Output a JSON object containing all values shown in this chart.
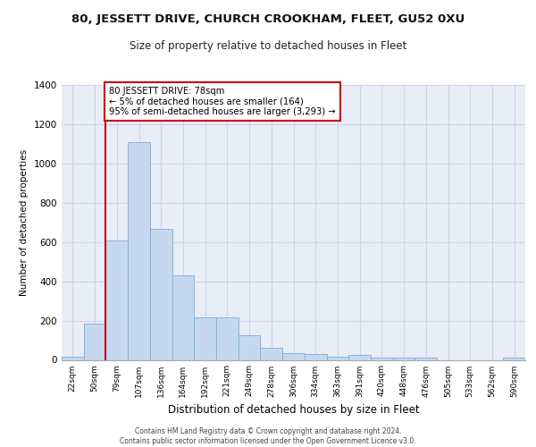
{
  "title": "80, JESSETT DRIVE, CHURCH CROOKHAM, FLEET, GU52 0XU",
  "subtitle": "Size of property relative to detached houses in Fleet",
  "xlabel": "Distribution of detached houses by size in Fleet",
  "ylabel": "Number of detached properties",
  "bin_labels": [
    "22sqm",
    "50sqm",
    "79sqm",
    "107sqm",
    "136sqm",
    "164sqm",
    "192sqm",
    "221sqm",
    "249sqm",
    "278sqm",
    "306sqm",
    "334sqm",
    "363sqm",
    "391sqm",
    "420sqm",
    "448sqm",
    "476sqm",
    "505sqm",
    "533sqm",
    "562sqm",
    "590sqm"
  ],
  "bar_values": [
    15,
    185,
    610,
    1110,
    665,
    430,
    215,
    215,
    125,
    60,
    35,
    30,
    15,
    25,
    10,
    10,
    10,
    0,
    0,
    0,
    10
  ],
  "bar_color": "#c5d8f0",
  "bar_edge_color": "#7aadd4",
  "grid_color": "#d0d5e8",
  "background_color": "#e8edf8",
  "vline_bin_index": 2,
  "vline_color": "#cc0000",
  "annotation_text": "80 JESSETT DRIVE: 78sqm\n← 5% of detached houses are smaller (164)\n95% of semi-detached houses are larger (3,293) →",
  "annotation_box_color": "#cc0000",
  "footer_line1": "Contains HM Land Registry data © Crown copyright and database right 2024.",
  "footer_line2": "Contains public sector information licensed under the Open Government Licence v3.0.",
  "ylim": [
    0,
    1400
  ],
  "yticks": [
    0,
    200,
    400,
    600,
    800,
    1000,
    1200,
    1400
  ]
}
